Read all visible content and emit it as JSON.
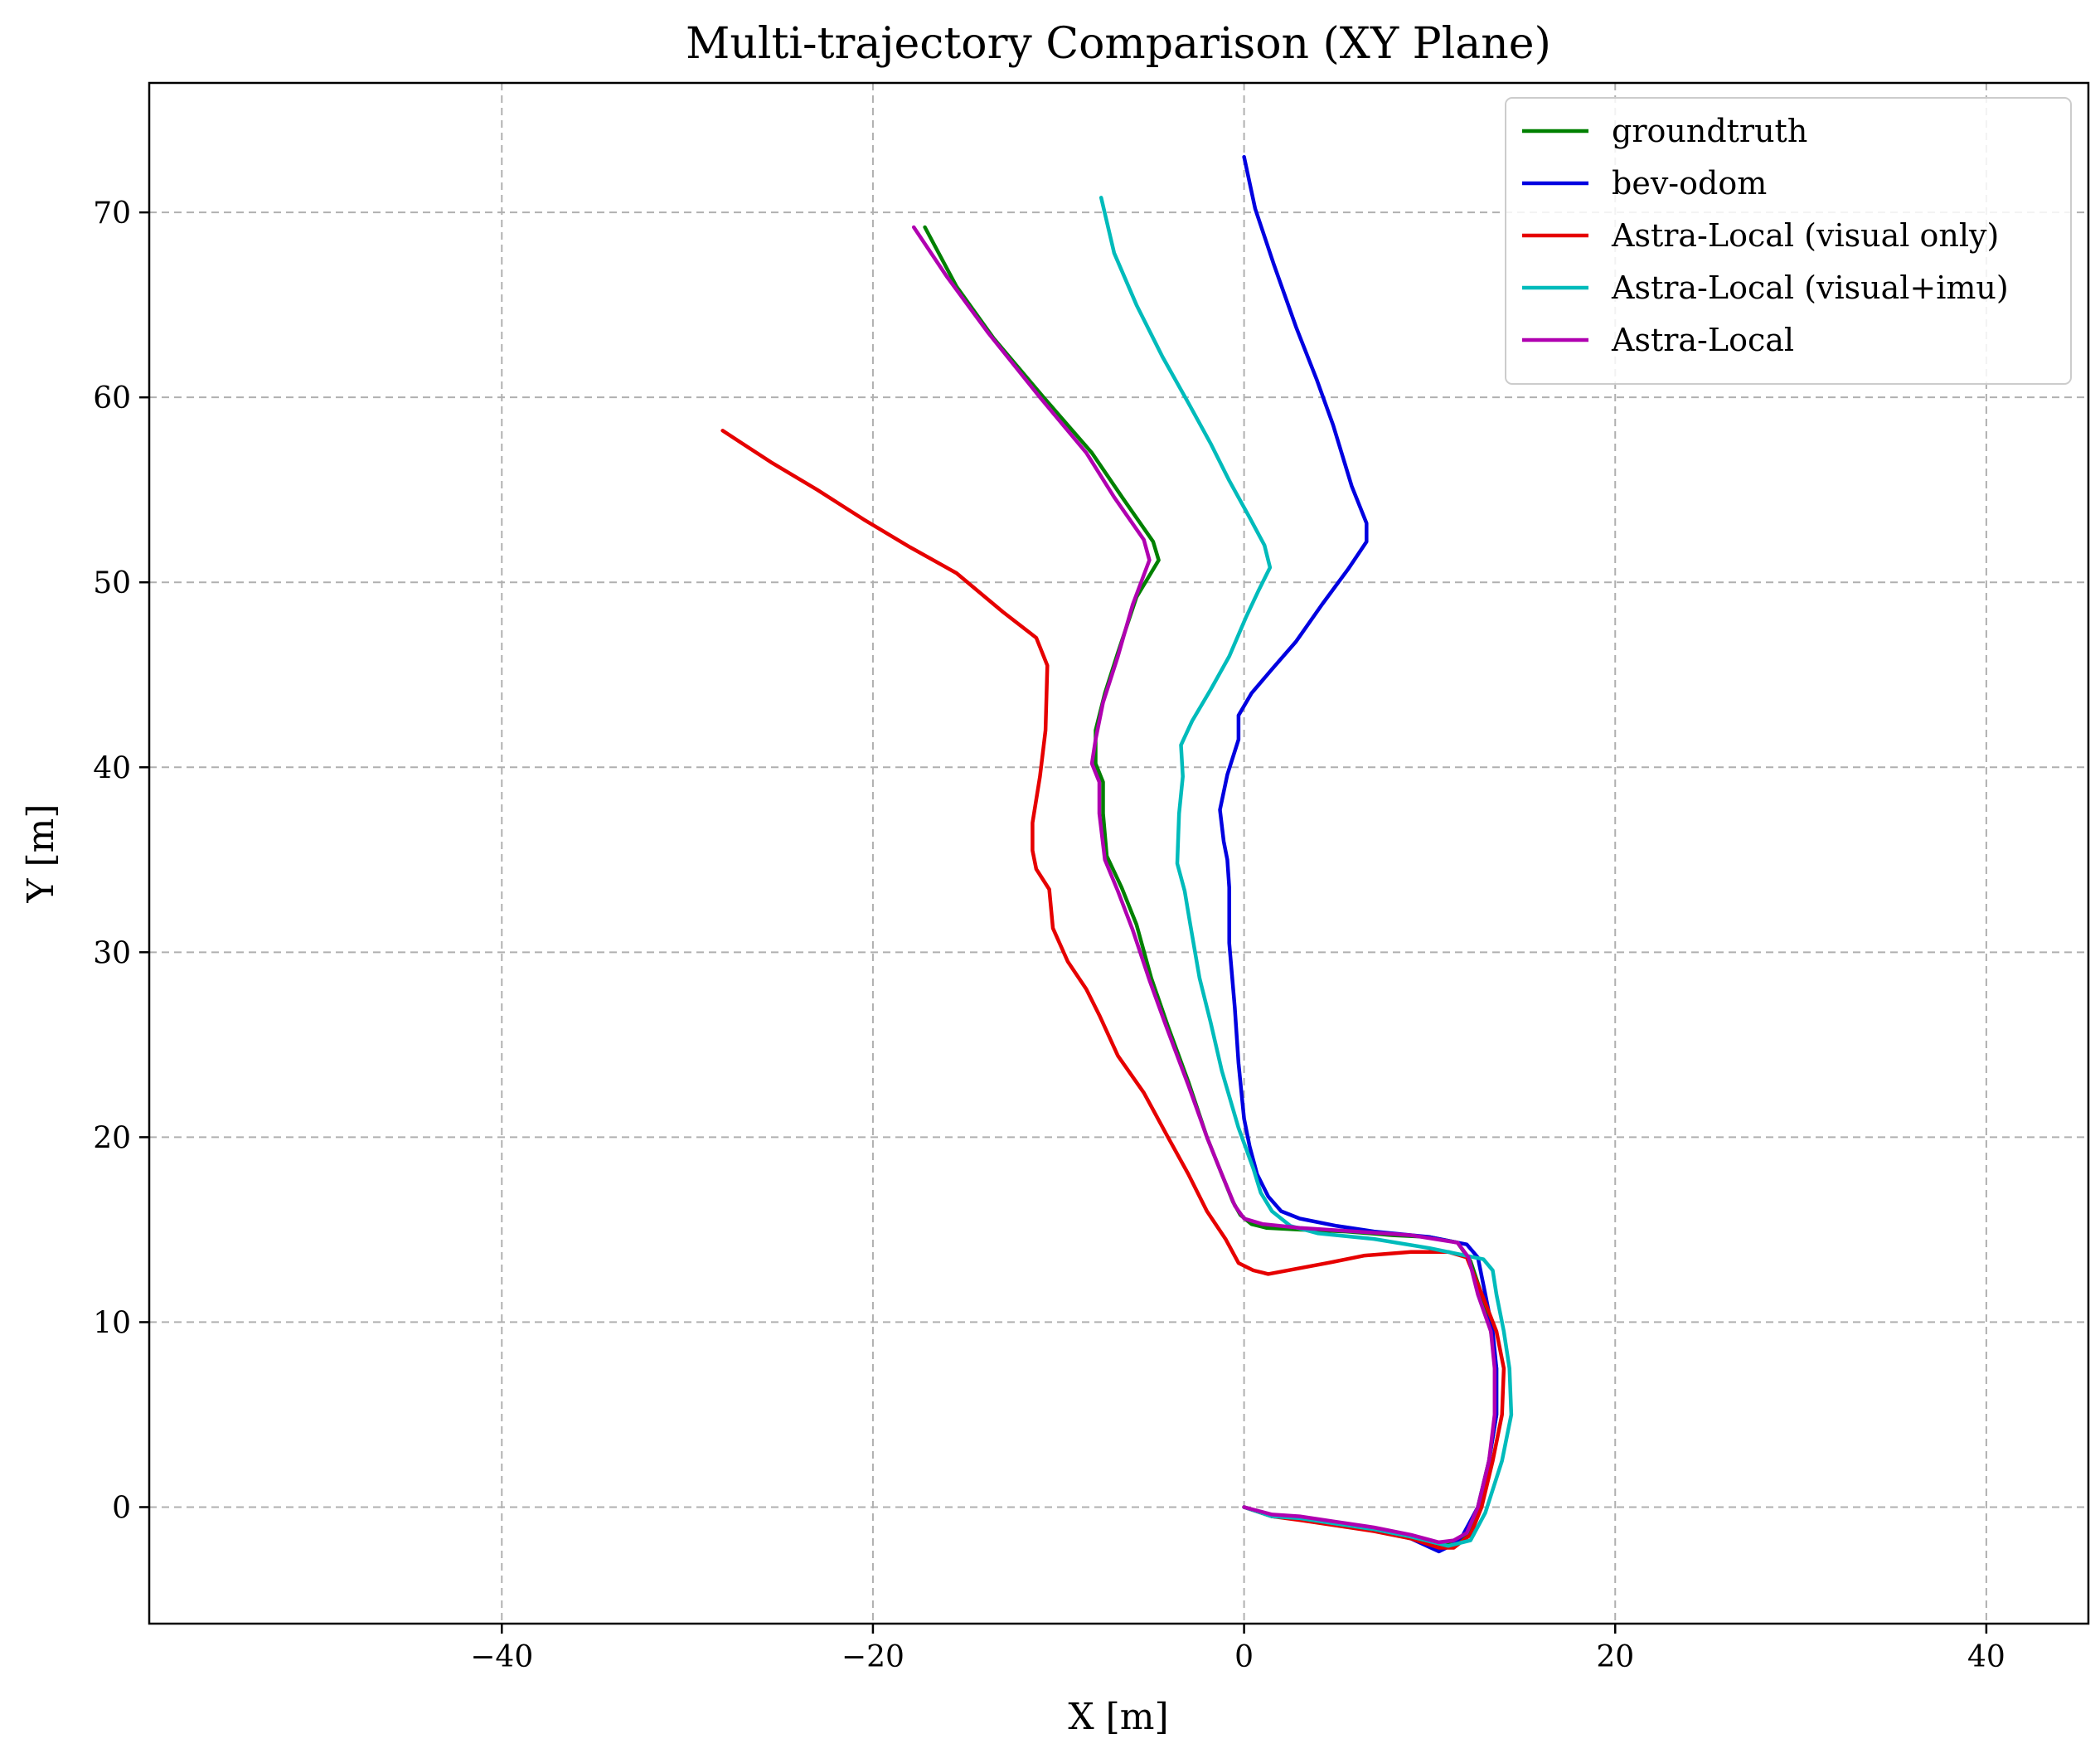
{
  "chart_data": {
    "type": "line",
    "title": "Multi-trajectory Comparison (XY Plane)",
    "xlabel": "X [m]",
    "ylabel": "Y [m]",
    "xlim": [
      -59,
      45.5
    ],
    "ylim": [
      -6.3,
      77
    ],
    "xticks": [
      -40,
      -20,
      0,
      20,
      40
    ],
    "yticks": [
      0,
      10,
      20,
      30,
      40,
      50,
      60,
      70
    ],
    "xtick_labels": [
      "−40",
      "−20",
      "0",
      "20",
      "40"
    ],
    "ytick_labels": [
      "0",
      "10",
      "20",
      "30",
      "40",
      "50",
      "60",
      "70"
    ],
    "grid": true,
    "legend_position": "top-right",
    "series": [
      {
        "name": "groundtruth",
        "color": "#008000",
        "points": [
          [
            0,
            0
          ],
          [
            1.5,
            -0.5
          ],
          [
            3,
            -0.6
          ],
          [
            5,
            -0.9
          ],
          [
            7,
            -1.2
          ],
          [
            9,
            -1.6
          ],
          [
            10.5,
            -2.1
          ],
          [
            11.3,
            -2.0
          ],
          [
            12,
            -1.5
          ],
          [
            12.6,
            0
          ],
          [
            13.2,
            2.5
          ],
          [
            13.6,
            5
          ],
          [
            13.6,
            7.5
          ],
          [
            13.3,
            9.5
          ],
          [
            12.8,
            11.5
          ],
          [
            12.2,
            13.3
          ],
          [
            11.5,
            14.3
          ],
          [
            10,
            14.6
          ],
          [
            8,
            14.7
          ],
          [
            5.5,
            14.9
          ],
          [
            3,
            15.0
          ],
          [
            1.2,
            15.1
          ],
          [
            0.4,
            15.3
          ],
          [
            -0.2,
            15.8
          ],
          [
            -0.6,
            16.5
          ],
          [
            -1.2,
            18
          ],
          [
            -2,
            20
          ],
          [
            -3,
            23
          ],
          [
            -4.1,
            26
          ],
          [
            -5,
            28.6
          ],
          [
            -5.8,
            31.5
          ],
          [
            -6.6,
            33.5
          ],
          [
            -7.4,
            35.2
          ],
          [
            -7.6,
            37.5
          ],
          [
            -7.6,
            39.2
          ],
          [
            -8,
            40.2
          ],
          [
            -8,
            42
          ],
          [
            -7.5,
            44
          ],
          [
            -6.8,
            46.2
          ],
          [
            -5.8,
            49.2
          ],
          [
            -4.6,
            51.2
          ],
          [
            -4.9,
            52.2
          ],
          [
            -6.5,
            54.5
          ],
          [
            -8.2,
            57
          ],
          [
            -10.8,
            60
          ],
          [
            -13.5,
            63.2
          ],
          [
            -15.5,
            66
          ],
          [
            -17.2,
            69.2
          ]
        ]
      },
      {
        "name": "bev-odom",
        "color": "#0000e0",
        "points": [
          [
            0,
            0
          ],
          [
            1.5,
            -0.5
          ],
          [
            3,
            -0.6
          ],
          [
            5,
            -0.9
          ],
          [
            7,
            -1.2
          ],
          [
            9,
            -1.7
          ],
          [
            10.5,
            -2.4
          ],
          [
            11.3,
            -2.0
          ],
          [
            11.8,
            -1.5
          ],
          [
            12.6,
            0
          ],
          [
            13.2,
            2.5
          ],
          [
            13.6,
            5
          ],
          [
            13.6,
            7.5
          ],
          [
            13.4,
            9.5
          ],
          [
            13,
            11.5
          ],
          [
            12.6,
            13.5
          ],
          [
            12,
            14.2
          ],
          [
            10,
            14.6
          ],
          [
            7,
            14.9
          ],
          [
            5,
            15.2
          ],
          [
            3,
            15.6
          ],
          [
            2,
            16
          ],
          [
            1.3,
            16.8
          ],
          [
            0.7,
            18
          ],
          [
            0.3,
            19.5
          ],
          [
            0,
            21
          ],
          [
            -0.3,
            24
          ],
          [
            -0.5,
            27
          ],
          [
            -0.8,
            30.5
          ],
          [
            -0.8,
            33.5
          ],
          [
            -0.9,
            35
          ],
          [
            -1.1,
            36
          ],
          [
            -1.3,
            37.7
          ],
          [
            -0.9,
            39.6
          ],
          [
            -0.3,
            41.5
          ],
          [
            -0.3,
            42.8
          ],
          [
            0.4,
            44
          ],
          [
            1.5,
            45.3
          ],
          [
            2.8,
            46.8
          ],
          [
            4.2,
            48.8
          ],
          [
            5.6,
            50.7
          ],
          [
            6.6,
            52.2
          ],
          [
            6.6,
            53.2
          ],
          [
            5.8,
            55.2
          ],
          [
            4.8,
            58.5
          ],
          [
            3.9,
            61
          ],
          [
            2.8,
            63.8
          ],
          [
            1.6,
            67.2
          ],
          [
            0.6,
            70.2
          ],
          [
            0,
            73
          ]
        ]
      },
      {
        "name": "Astra-Local (visual only)",
        "color": "#e60000",
        "points": [
          [
            0,
            0
          ],
          [
            1.5,
            -0.5
          ],
          [
            3,
            -0.7
          ],
          [
            5,
            -1.0
          ],
          [
            7,
            -1.3
          ],
          [
            9,
            -1.7
          ],
          [
            10.5,
            -2.2
          ],
          [
            11.3,
            -2.2
          ],
          [
            12.2,
            -1.5
          ],
          [
            12.8,
            0
          ],
          [
            13.4,
            2.5
          ],
          [
            13.9,
            5
          ],
          [
            14,
            7.5
          ],
          [
            13.6,
            9.5
          ],
          [
            12.9,
            11.3
          ],
          [
            12,
            13.5
          ],
          [
            11,
            13.8
          ],
          [
            9,
            13.8
          ],
          [
            6.5,
            13.6
          ],
          [
            4.5,
            13.2
          ],
          [
            1.3,
            12.6
          ],
          [
            0.5,
            12.8
          ],
          [
            -0.3,
            13.2
          ],
          [
            -1,
            14.5
          ],
          [
            -2,
            16
          ],
          [
            -3,
            18
          ],
          [
            -4.1,
            20
          ],
          [
            -5.4,
            22.4
          ],
          [
            -6.8,
            24.4
          ],
          [
            -7.8,
            26.6
          ],
          [
            -8.5,
            28
          ],
          [
            -9.5,
            29.5
          ],
          [
            -10.3,
            31.3
          ],
          [
            -10.5,
            33.4
          ],
          [
            -11.2,
            34.5
          ],
          [
            -11.4,
            35.5
          ],
          [
            -11.4,
            37
          ],
          [
            -11,
            39.5
          ],
          [
            -10.7,
            42
          ],
          [
            -10.6,
            45.5
          ],
          [
            -11.2,
            47
          ],
          [
            -13,
            48.4
          ],
          [
            -15.5,
            50.5
          ],
          [
            -18,
            51.9
          ],
          [
            -20.5,
            53.4
          ],
          [
            -23,
            55
          ],
          [
            -25.5,
            56.5
          ],
          [
            -28.1,
            58.2
          ]
        ]
      },
      {
        "name": "Astra-Local (visual+imu)",
        "color": "#00bbbb",
        "points": [
          [
            0,
            0
          ],
          [
            1.5,
            -0.5
          ],
          [
            3,
            -0.6
          ],
          [
            5,
            -0.9
          ],
          [
            7,
            -1.2
          ],
          [
            9,
            -1.6
          ],
          [
            11,
            -2.1
          ],
          [
            12.2,
            -1.8
          ],
          [
            13,
            -0.3
          ],
          [
            13.9,
            2.5
          ],
          [
            14.4,
            5
          ],
          [
            14.3,
            7.5
          ],
          [
            14,
            9.5
          ],
          [
            13.6,
            11.5
          ],
          [
            13.4,
            12.8
          ],
          [
            12.9,
            13.4
          ],
          [
            10,
            14.0
          ],
          [
            7,
            14.5
          ],
          [
            4,
            14.8
          ],
          [
            2.5,
            15.2
          ],
          [
            1.5,
            16
          ],
          [
            0.9,
            17
          ],
          [
            0.5,
            18.3
          ],
          [
            -0.3,
            20.5
          ],
          [
            -1.2,
            23.6
          ],
          [
            -1.8,
            26.2
          ],
          [
            -2.4,
            28.6
          ],
          [
            -2.9,
            31.5
          ],
          [
            -3.2,
            33.3
          ],
          [
            -3.6,
            34.8
          ],
          [
            -3.5,
            37.5
          ],
          [
            -3.3,
            39.5
          ],
          [
            -3.4,
            41.2
          ],
          [
            -2.8,
            42.5
          ],
          [
            -1.8,
            44.2
          ],
          [
            -0.8,
            46
          ],
          [
            0.1,
            48.1
          ],
          [
            0.8,
            49.6
          ],
          [
            1.4,
            50.8
          ],
          [
            1.1,
            52
          ],
          [
            0.3,
            53.5
          ],
          [
            -0.8,
            55.5
          ],
          [
            -1.8,
            57.5
          ],
          [
            -3,
            59.7
          ],
          [
            -4.4,
            62.2
          ],
          [
            -5.8,
            65
          ],
          [
            -7,
            67.8
          ],
          [
            -7.7,
            70.8
          ]
        ]
      },
      {
        "name": "Astra-Local",
        "color": "#b000b0",
        "points": [
          [
            0,
            0
          ],
          [
            1.5,
            -0.4
          ],
          [
            3,
            -0.5
          ],
          [
            5,
            -0.8
          ],
          [
            7,
            -1.1
          ],
          [
            9,
            -1.5
          ],
          [
            10.5,
            -1.9
          ],
          [
            11.3,
            -1.8
          ],
          [
            12,
            -1.4
          ],
          [
            12.6,
            0
          ],
          [
            13.2,
            2.5
          ],
          [
            13.5,
            5
          ],
          [
            13.5,
            7.5
          ],
          [
            13.3,
            9.5
          ],
          [
            12.6,
            11.5
          ],
          [
            12.1,
            13.5
          ],
          [
            11.5,
            14.3
          ],
          [
            9,
            14.7
          ],
          [
            6,
            14.9
          ],
          [
            3,
            15.1
          ],
          [
            1,
            15.3
          ],
          [
            0,
            15.6
          ],
          [
            -0.5,
            16.3
          ],
          [
            -1.2,
            18
          ],
          [
            -2,
            20
          ],
          [
            -3,
            22.8
          ],
          [
            -4.2,
            26
          ],
          [
            -5.1,
            28.5
          ],
          [
            -6,
            31.2
          ],
          [
            -6.8,
            33.3
          ],
          [
            -7.5,
            35
          ],
          [
            -7.8,
            37.5
          ],
          [
            -7.8,
            39.2
          ],
          [
            -8.2,
            40.2
          ],
          [
            -8,
            41.5
          ],
          [
            -7.6,
            43.5
          ],
          [
            -6.8,
            46
          ],
          [
            -6,
            48.8
          ],
          [
            -5.1,
            51.2
          ],
          [
            -5.4,
            52.3
          ],
          [
            -7,
            54.6
          ],
          [
            -8.5,
            57
          ],
          [
            -11,
            60
          ],
          [
            -13.8,
            63.5
          ],
          [
            -16,
            66.5
          ],
          [
            -17.8,
            69.2
          ]
        ]
      }
    ]
  }
}
